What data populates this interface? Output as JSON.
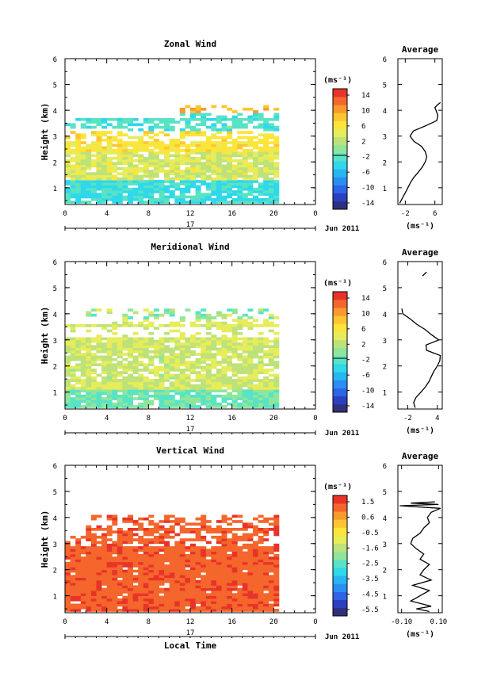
{
  "figure": {
    "bg": "#ffffff"
  },
  "colors": {
    "scale": [
      "#2f2f7d",
      "#2b3fc0",
      "#2e64e6",
      "#2a8ff0",
      "#26b6f0",
      "#2fd8ea",
      "#59e3c4",
      "#8fe69a",
      "#bde27a",
      "#e6ec5a",
      "#fbe53a",
      "#fdc630",
      "#f99a2e",
      "#f4662c",
      "#e83329"
    ]
  },
  "chart_data": [
    {
      "id": "zonal",
      "type": "heatmap",
      "title": "Zonal Wind",
      "ylabel": "Height (km)",
      "xticks": [
        "0",
        "4",
        "8",
        "12",
        "16",
        "20",
        "0"
      ],
      "yticks": [
        "1",
        "2",
        "3",
        "4",
        "5",
        "6"
      ],
      "ylim": [
        0.35,
        6.0
      ],
      "xlim": [
        0,
        24
      ],
      "date_label": "17",
      "month_label": "Jun 2011",
      "colorbar": {
        "unit": "(ms⁻¹)",
        "min": -16,
        "max": 16,
        "ticks": [
          "14",
          "10",
          "6",
          "2",
          "-2",
          "-6",
          "-10",
          "-14"
        ],
        "zero_line": 0
      },
      "profile": {
        "title": "Average",
        "xlabel": "(ms⁻¹)",
        "xticks": [
          "-2",
          "6"
        ],
        "xlim": [
          -4,
          8
        ],
        "yticks": [
          "1",
          "2",
          "3",
          "4",
          "5",
          "6"
        ],
        "heights": [
          0.4,
          0.6,
          0.8,
          1.0,
          1.2,
          1.4,
          1.6,
          1.8,
          2.0,
          2.2,
          2.4,
          2.6,
          2.8,
          3.0,
          3.2,
          3.4,
          3.6,
          3.8,
          4.0,
          4.1,
          4.2,
          4.3
        ],
        "values": [
          -3.5,
          -2.8,
          -2.0,
          -1.3,
          -0.6,
          0.3,
          1.5,
          2.6,
          3.4,
          3.8,
          3.4,
          2.4,
          0.3,
          -0.7,
          0.2,
          3.5,
          6.5,
          6.8,
          6.3,
          6.0,
          6.6,
          7.5
        ]
      }
    },
    {
      "id": "meridional",
      "type": "heatmap",
      "title": "Meridional Wind",
      "ylabel": "Height (km)",
      "xticks": [
        "0",
        "4",
        "8",
        "12",
        "16",
        "20",
        "0"
      ],
      "yticks": [
        "1",
        "2",
        "3",
        "4",
        "5",
        "6"
      ],
      "ylim": [
        0.35,
        6.0
      ],
      "xlim": [
        0,
        24
      ],
      "date_label": "17",
      "month_label": "Jun 2011",
      "colorbar": {
        "unit": "(ms⁻¹)",
        "min": -16,
        "max": 16,
        "ticks": [
          "14",
          "10",
          "6",
          "2",
          "-2",
          "-6",
          "-10",
          "-14"
        ],
        "zero_line": 0
      },
      "profile": {
        "title": "Average",
        "xlabel": "(ms⁻¹)",
        "xticks": [
          "-2",
          "4"
        ],
        "xlim": [
          -4,
          5
        ],
        "yticks": [
          "1",
          "2",
          "3",
          "4",
          "5",
          "6"
        ],
        "heights": [
          0.4,
          0.6,
          0.8,
          1.0,
          1.2,
          1.4,
          1.6,
          1.8,
          2.0,
          2.2,
          2.4,
          2.6,
          2.8,
          3.0,
          3.2,
          3.4,
          3.6,
          3.8,
          4.0,
          4.2
        ],
        "values": [
          -0.5,
          -0.8,
          -0.3,
          0.7,
          1.6,
          2.3,
          2.8,
          3.3,
          4.0,
          4.5,
          4.6,
          1.8,
          1.7,
          4.3,
          2.8,
          1.5,
          -0.2,
          -1.5,
          -3.0,
          -3.2
        ],
        "top_segment": {
          "heights": [
            5.45,
            5.6
          ],
          "values": [
            1.0,
            1.8
          ]
        }
      }
    },
    {
      "id": "vertical",
      "type": "heatmap",
      "title": "Vertical Wind",
      "ylabel": "Height (km)",
      "xlabel": "Local Time",
      "xticks": [
        "0",
        "4",
        "8",
        "12",
        "16",
        "20",
        "0"
      ],
      "yticks": [
        "1",
        "2",
        "3",
        "4",
        "5",
        "6"
      ],
      "ylim": [
        0.35,
        6.0
      ],
      "xlim": [
        0,
        24
      ],
      "date_label": "17",
      "month_label": "Jun 2011",
      "colorbar": {
        "unit": "(ms⁻¹)",
        "min": -6.0,
        "max": 2.0,
        "ticks": [
          "1.5",
          "0.6",
          "-0.5",
          "-1.6",
          "-2.5",
          "-3.5",
          "-4.5",
          "-5.5"
        ]
      },
      "profile": {
        "title": "Average",
        "xlabel": "(ms⁻¹)",
        "xticks": [
          "-0.10",
          "0.10"
        ],
        "xlim": [
          -0.12,
          0.12
        ],
        "yticks": [
          "1",
          "2",
          "3",
          "4",
          "5",
          "6"
        ],
        "heights": [
          0.4,
          0.5,
          0.6,
          0.8,
          1.0,
          1.2,
          1.4,
          1.6,
          1.8,
          2.0,
          2.2,
          2.4,
          2.6,
          2.8,
          3.0,
          3.2,
          3.4,
          3.6,
          3.8,
          4.0,
          4.2,
          4.35,
          4.45,
          4.5,
          4.55,
          4.6
        ],
        "values": [
          0.05,
          -0.02,
          0.06,
          -0.05,
          0.0,
          0.05,
          -0.04,
          0.06,
          0.0,
          0.02,
          0.05,
          0.0,
          0.02,
          -0.02,
          -0.05,
          -0.04,
          0.0,
          0.02,
          0.05,
          0.04,
          0.06,
          0.11,
          -0.11,
          0.1,
          -0.05,
          0.08
        ]
      }
    }
  ]
}
